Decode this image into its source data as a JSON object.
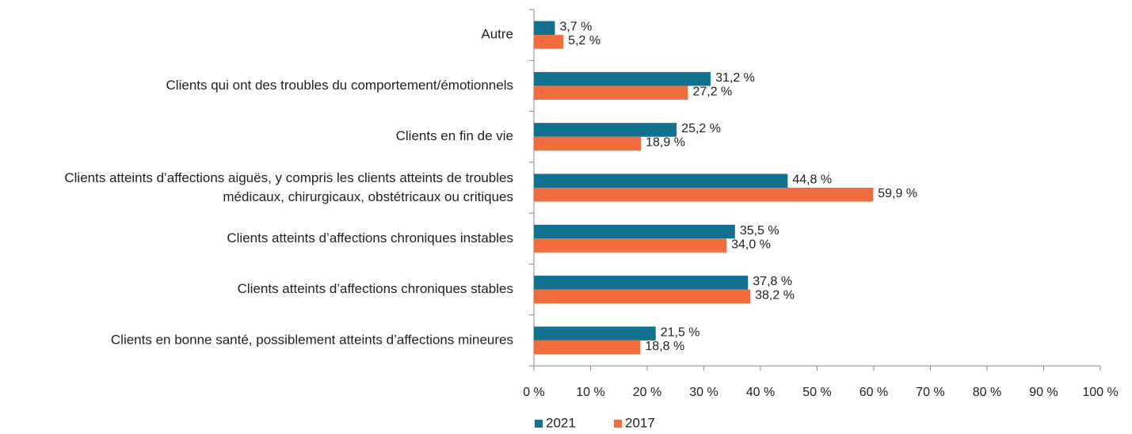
{
  "chart_data": {
    "type": "hbar",
    "categories": [
      "Autre",
      "Clients qui ont des troubles du comportement/émotionnels",
      "Clients en fin de vie",
      "Clients atteints d’affections aiguës, y compris les clients atteints de troubles médicaux, chirurgicaux, obstétricaux ou critiques",
      "Clients atteints d’affections chroniques instables",
      "Clients atteints d’affections chroniques stables",
      "Clients en bonne santé, possiblement atteints d’affections mineures"
    ],
    "series": [
      {
        "name": "2021",
        "color": "#11718f",
        "values": [
          3.7,
          31.2,
          25.2,
          44.8,
          35.5,
          37.8,
          21.5
        ],
        "value_labels": [
          "3,7 %",
          "31,2 %",
          "25,2 %",
          "44,8 %",
          "35,5 %",
          "37,8 %",
          "21,5 %"
        ]
      },
      {
        "name": "2017",
        "color": "#f26d3d",
        "values": [
          5.2,
          27.2,
          18.9,
          59.9,
          34.0,
          38.2,
          18.8
        ],
        "value_labels": [
          "5,2 %",
          "27,2 %",
          "18,9 %",
          "59,9 %",
          "34,0 %",
          "38,2 %",
          "18,8 %"
        ]
      }
    ],
    "xlim": [
      0,
      100
    ],
    "xticks": [
      {
        "value": 0,
        "label": "0 %"
      },
      {
        "value": 10,
        "label": "10 %"
      },
      {
        "value": 20,
        "label": "20 %"
      },
      {
        "value": 30,
        "label": "30 %"
      },
      {
        "value": 40,
        "label": "40 %"
      },
      {
        "value": 50,
        "label": "50 %"
      },
      {
        "value": 60,
        "label": "60 %"
      },
      {
        "value": 70,
        "label": "70 %"
      },
      {
        "value": 80,
        "label": "80 %"
      },
      {
        "value": 90,
        "label": "90 %"
      },
      {
        "value": 100,
        "label": "100 %"
      }
    ],
    "legend": "bottom"
  }
}
